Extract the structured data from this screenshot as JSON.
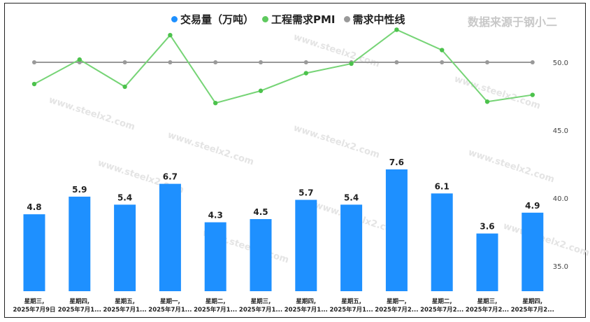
{
  "legend": [
    {
      "label": "交易量（万吨）",
      "color": "#1e90ff"
    },
    {
      "label": "工程需求PMI",
      "color": "#5ec95e"
    },
    {
      "label": "需求中性线",
      "color": "#999999"
    }
  ],
  "source_text": "数据来源于钢小二",
  "watermark": "www.steelx2.com",
  "chart_data": {
    "type": "bar",
    "categories": [
      [
        "星期三,",
        "2025年7月9日"
      ],
      [
        "星期四,",
        "2025年7月1..."
      ],
      [
        "星期五,",
        "2025年7月1..."
      ],
      [
        "星期一,",
        "2025年7月1..."
      ],
      [
        "星期二,",
        "2025年7月1..."
      ],
      [
        "星期三,",
        "2025年7月1..."
      ],
      [
        "星期四,",
        "2025年7月1..."
      ],
      [
        "星期五,",
        "2025年7月1..."
      ],
      [
        "星期一,",
        "2025年7月2..."
      ],
      [
        "星期二,",
        "2025年7月2..."
      ],
      [
        "星期三,",
        "2025年7月2..."
      ],
      [
        "星期四,",
        "2025年7月2..."
      ]
    ],
    "series": [
      {
        "name": "交易量（万吨）",
        "type": "bar",
        "color": "#1e90ff",
        "values": [
          4.8,
          5.9,
          5.4,
          6.7,
          4.3,
          4.5,
          5.7,
          5.4,
          7.6,
          6.1,
          3.6,
          4.9
        ]
      },
      {
        "name": "工程需求PMI",
        "type": "line",
        "color": "#76d476",
        "values": [
          48.4,
          50.2,
          48.2,
          52.0,
          47.0,
          47.9,
          49.2,
          49.9,
          52.4,
          50.9,
          47.1,
          47.6
        ]
      },
      {
        "name": "需求中性线",
        "type": "line",
        "color": "#999999",
        "values": [
          50,
          50,
          50,
          50,
          50,
          50,
          50,
          50,
          50,
          50,
          50,
          50
        ]
      }
    ],
    "y_right_ticks": [
      "35.0",
      "40.0",
      "45.0",
      "50.0"
    ],
    "y_right_range": [
      32.5,
      53.5
    ],
    "bar_value_range": [
      0,
      9.8
    ],
    "grid": false,
    "legend_position": "top-center"
  }
}
